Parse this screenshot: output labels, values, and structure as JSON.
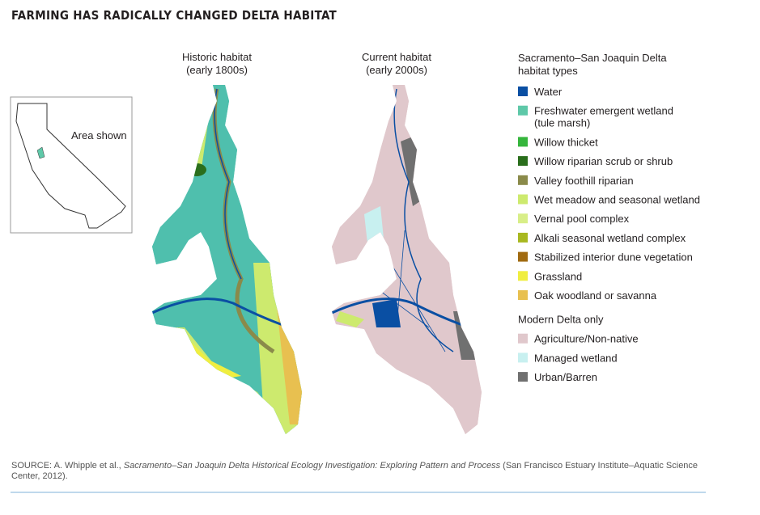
{
  "header": {
    "title": "FARMING HAS RADICALLY CHANGED DELTA HABITAT"
  },
  "inset": {
    "label": "Area shown"
  },
  "maps": [
    {
      "title_lines": [
        "Historic habitat",
        "(early 1800s)"
      ]
    },
    {
      "title_lines": [
        "Current habitat",
        "(early 2000s)"
      ]
    }
  ],
  "legend": {
    "title_lines": [
      "Sacramento–San Joaquin Delta",
      "habitat types"
    ],
    "items": [
      {
        "lines": [
          "Water"
        ],
        "color": "#0a4fa3"
      },
      {
        "lines": [
          "Freshwater emergent wetland",
          "(tule marsh)"
        ],
        "color": "#5ec8a8"
      },
      {
        "lines": [
          "Willow thicket"
        ],
        "color": "#35b53c"
      },
      {
        "lines": [
          "Willow riparian scrub or shrub"
        ],
        "color": "#2a6e1c"
      },
      {
        "lines": [
          "Valley foothill riparian"
        ],
        "color": "#8a8a4a"
      },
      {
        "lines": [
          "Wet meadow and seasonal wetland"
        ],
        "color": "#cdea6e"
      },
      {
        "lines": [
          "Vernal pool complex"
        ],
        "color": "#d8ee88"
      },
      {
        "lines": [
          "Alkali seasonal wetland complex"
        ],
        "color": "#a8b820"
      },
      {
        "lines": [
          "Stabilized interior dune vegetation"
        ],
        "color": "#a06a10"
      },
      {
        "lines": [
          "Grassland"
        ],
        "color": "#f0ee40"
      },
      {
        "lines": [
          "Oak woodland or savanna"
        ],
        "color": "#e8c050"
      }
    ],
    "modern_title": "Modern Delta only",
    "modern_items": [
      {
        "lines": [
          "Agriculture/Non-native"
        ],
        "color": "#e0c8cc"
      },
      {
        "lines": [
          "Managed wetland"
        ],
        "color": "#c8f0f0"
      },
      {
        "lines": [
          "Urban/Barren"
        ],
        "color": "#707070"
      }
    ]
  },
  "source": {
    "before": "SOURCE: A. Whipple et al., ",
    "italic": "Sacramento–San Joaquin Delta Historical Ecology Investigation: Exploring Pattern and Process",
    "after": " (San Francisco Estuary Institute–Aquatic Science Center, 2012)."
  }
}
